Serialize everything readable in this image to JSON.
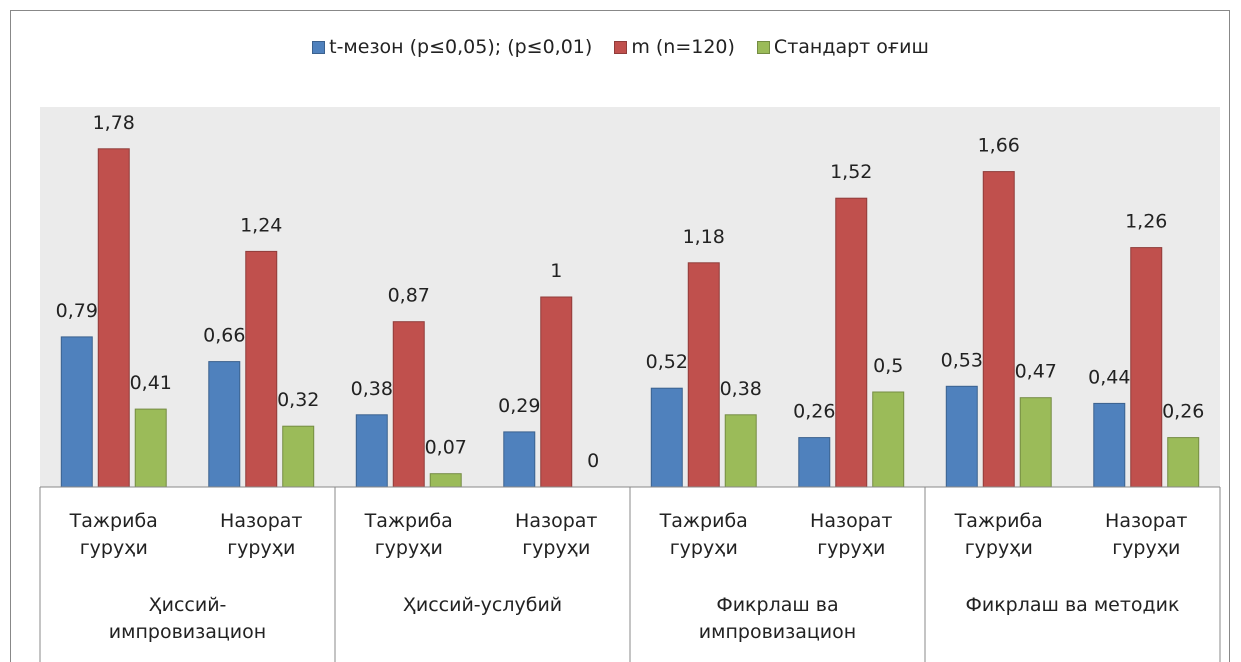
{
  "chart_data": {
    "type": "bar",
    "categories": [
      "Тажриба гуруҳи",
      "Назорат гуруҳи",
      "Тажриба гуруҳи",
      "Назорат гуруҳи",
      "Тажриба гуруҳи",
      "Назорат гуруҳи",
      "Тажриба гуруҳи",
      "Назорат гуруҳи"
    ],
    "groups": [
      "Ҳиссий-импровизацион",
      "Ҳиссий-услубий",
      "Фикрлаш ва импровизацион",
      "Фикрлаш ва методик"
    ],
    "series": [
      {
        "name": "t-мезон (p≤0,05); (p≤0,01)",
        "color": "#4f81bd",
        "values": [
          0.79,
          0.66,
          0.38,
          0.29,
          0.52,
          0.26,
          0.53,
          0.44
        ],
        "value_labels": [
          "0,79",
          "0,66",
          "0,38",
          "0,29",
          "0,52",
          "0,26",
          "0,53",
          "0,44"
        ]
      },
      {
        "name": "m (n=120)",
        "color": "#c0504d",
        "values": [
          1.78,
          1.24,
          0.87,
          1,
          1.18,
          1.52,
          1.66,
          1.26
        ],
        "value_labels": [
          "1,78",
          "1,24",
          "0,87",
          "1",
          "1,18",
          "1,52",
          "1,66",
          "1,26"
        ]
      },
      {
        "name": "Стандарт оғиш",
        "color": "#9bbb59",
        "values": [
          0.41,
          0.32,
          0.07,
          0,
          0.38,
          0.5,
          0.47,
          0.26
        ],
        "value_labels": [
          "0,41",
          "0,32",
          "0,07",
          "0",
          "0,38",
          "0,5",
          "0,47",
          "0,26"
        ]
      }
    ],
    "ylim": [
      0,
      2
    ],
    "legend": "top"
  }
}
